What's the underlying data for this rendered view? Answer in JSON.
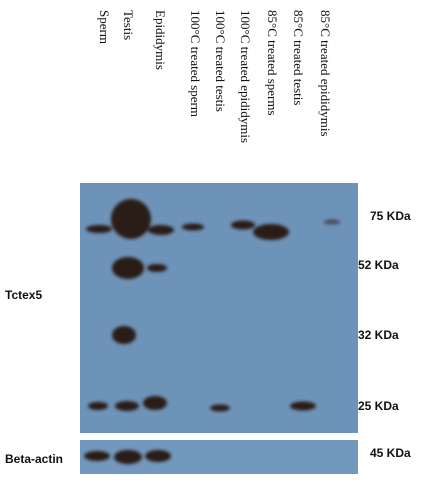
{
  "lanes": [
    "Sperm",
    "Testis",
    "Epididymis",
    "100°C treated sperm",
    "100°C treated testis",
    "100°C treated epididymis",
    "85°C treated sperms",
    "85°C treated testis",
    "85°C treated epididymis"
  ],
  "markers": [
    "75 KDa",
    "52 KDa",
    "32 KDa",
    "25 KDa"
  ],
  "rows": {
    "target": "Tctex5",
    "control": "Beta-actin"
  },
  "control_marker": "45 KDa"
}
